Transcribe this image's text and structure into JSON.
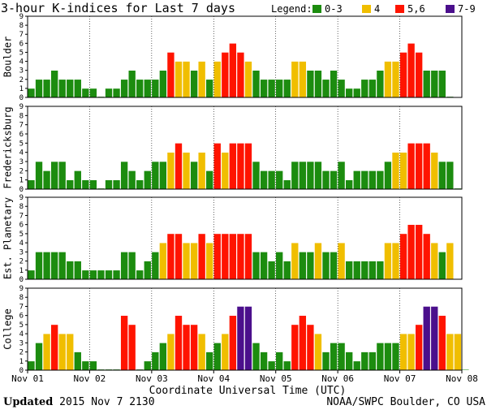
{
  "title": "3-hour K-indices for Last 7 days",
  "legend": {
    "label": "Legend:",
    "items": [
      {
        "label": "0-3",
        "color": "#1c8c0f"
      },
      {
        "label": "4",
        "color": "#f0be00"
      },
      {
        "label": "5,6",
        "color": "#ff1400"
      },
      {
        "label": "7-9",
        "color": "#4b0f8c"
      }
    ]
  },
  "footer": {
    "updated_label": "Updated",
    "updated_value": " 2015 Nov  7 2130",
    "source": "NOAA/SWPC Boulder, CO USA"
  },
  "chart_data": {
    "type": "bar",
    "title": "3-hour K-indices for Last 7 days",
    "xlabel": "Coordinate Universal Time (UTC)",
    "x_tick_labels": [
      "Nov 01",
      "Nov 02",
      "Nov 03",
      "Nov 04",
      "Nov 05",
      "Nov 06",
      "Nov 07",
      "Nov 08"
    ],
    "ylim": [
      0,
      9
    ],
    "y_ticks": [
      0,
      1,
      2,
      3,
      4,
      5,
      6,
      7,
      8,
      9
    ],
    "bars_per_day": 8,
    "series": [
      {
        "name": "Boulder",
        "values": [
          1,
          2,
          2,
          3,
          2,
          2,
          2,
          1,
          1,
          0,
          1,
          1,
          2,
          3,
          2,
          2,
          2,
          3,
          5,
          4,
          4,
          3,
          4,
          2,
          4,
          5,
          6,
          5,
          4,
          3,
          2,
          2,
          2,
          2,
          4,
          4,
          3,
          3,
          2,
          3,
          2,
          1,
          1,
          2,
          2,
          3,
          4,
          4,
          5,
          6,
          5,
          3,
          3,
          3,
          0
        ]
      },
      {
        "name": "Fredericksburg",
        "values": [
          1,
          3,
          2,
          3,
          3,
          1,
          2,
          1,
          1,
          0,
          1,
          1,
          3,
          2,
          1,
          2,
          3,
          3,
          4,
          5,
          4,
          3,
          4,
          2,
          5,
          4,
          5,
          5,
          5,
          3,
          2,
          2,
          2,
          1,
          3,
          3,
          3,
          3,
          2,
          2,
          3,
          1,
          2,
          2,
          2,
          2,
          3,
          4,
          4,
          5,
          5,
          5,
          4,
          3,
          3,
          0
        ]
      },
      {
        "name": "Est. Planetary",
        "values": [
          1,
          3,
          3,
          3,
          3,
          2,
          2,
          1,
          1,
          1,
          1,
          1,
          3,
          3,
          1,
          2,
          3,
          4,
          5,
          5,
          4,
          4,
          5,
          4,
          5,
          5,
          5,
          5,
          5,
          3,
          3,
          2,
          3,
          2,
          4,
          3,
          3,
          4,
          3,
          3,
          4,
          2,
          2,
          2,
          2,
          2,
          4,
          4,
          5,
          6,
          6,
          5,
          4,
          3,
          4
        ]
      },
      {
        "name": "College",
        "values": [
          1,
          3,
          4,
          5,
          4,
          4,
          2,
          1,
          1,
          0,
          0,
          0,
          6,
          5,
          0,
          1,
          2,
          3,
          4,
          6,
          5,
          5,
          4,
          2,
          3,
          4,
          6,
          7,
          7,
          3,
          2,
          1,
          2,
          1,
          5,
          6,
          5,
          4,
          2,
          3,
          3,
          2,
          1,
          2,
          2,
          3,
          3,
          3,
          4,
          4,
          5,
          7,
          7,
          6,
          4,
          4,
          0
        ]
      }
    ]
  }
}
